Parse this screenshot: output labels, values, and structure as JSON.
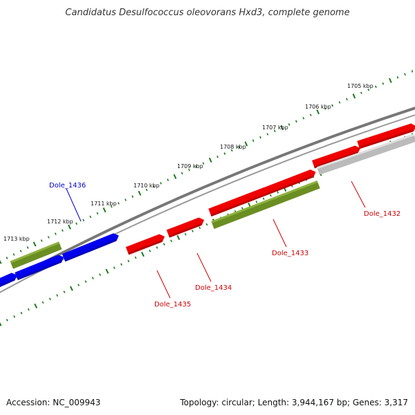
{
  "title": "Candidatus Desulfococcus oleovorans Hxd3, complete genome",
  "footer": {
    "accession": "Accession: NC_009943",
    "summary": "Topology: circular; Length: 3,944,167 bp; Genes: 3,317"
  },
  "colors": {
    "tick": "#1a7a1a",
    "backbone": "#777777",
    "red_gene": "#ee0000",
    "blue_gene": "#0000ee",
    "green_gene": "#6b8e23",
    "grey_gene": "#bbbbbb",
    "red_label": "#cc0000",
    "blue_label": "#0000cc"
  },
  "kbp_labels": [
    "1705 kbp",
    "1706 kbp",
    "1707 kbp",
    "1708 kbp",
    "1709 kbp",
    "1710 kbp",
    "1711 kbp",
    "1712 kbp",
    "1713 kbp"
  ],
  "genes": [
    {
      "label": "Dole_1436",
      "color": "blue"
    },
    {
      "label": "Dole_1435",
      "color": "red"
    },
    {
      "label": "Dole_1434",
      "color": "red"
    },
    {
      "label": "Dole_1433",
      "color": "red"
    },
    {
      "label": "Dole_1432",
      "color": "red"
    }
  ]
}
